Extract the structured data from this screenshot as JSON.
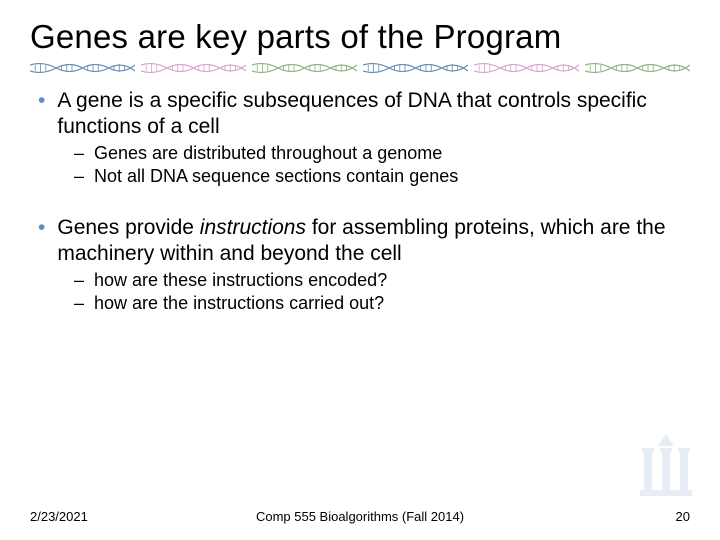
{
  "title": "Genes are key parts of the Program",
  "bullets": [
    {
      "level": 1,
      "text": "A gene is a specific subsequences of DNA that controls specific functions of a cell"
    },
    {
      "level": 2,
      "text": "Genes are distributed throughout a genome"
    },
    {
      "level": 2,
      "text": "Not all DNA sequence sections contain genes"
    },
    {
      "level": 0,
      "text": ""
    },
    {
      "level": 1,
      "pre": "Genes provide ",
      "italic": "instructions",
      "post": " for assembling proteins, which are the machinery within and beyond the cell"
    },
    {
      "level": 2,
      "text": "how are these instructions encoded?"
    },
    {
      "level": 2,
      "text": "how are the instructions carried out?"
    }
  ],
  "footer": {
    "date": "2/23/2021",
    "course": "Comp 555 Bioalgorithms (Fall 2014)",
    "page": "20"
  },
  "style": {
    "bullet_color": "#5b8fc7",
    "dna_colors": [
      "#6b8fb5",
      "#d9a8c8",
      "#8fb585"
    ],
    "logo_color": "#b8cde0",
    "background": "#ffffff"
  }
}
